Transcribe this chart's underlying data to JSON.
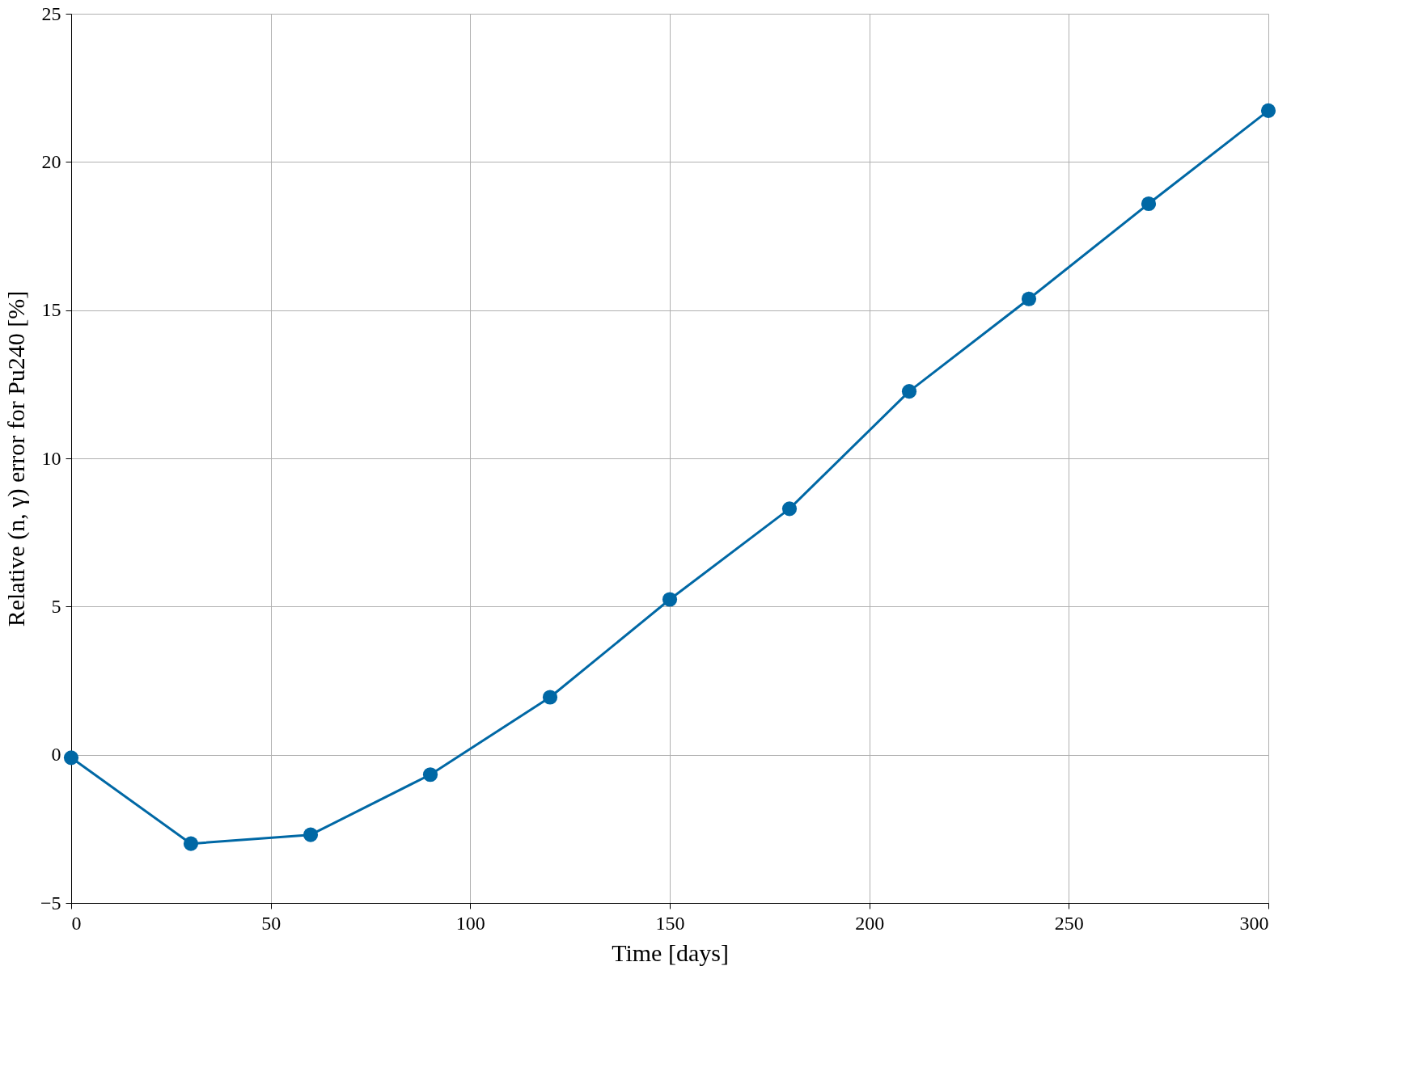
{
  "chart_data": {
    "type": "line",
    "xlabel": "Time [days]",
    "ylabel": "Relative (n, γ) error for Pu240 [%]",
    "x": [
      0,
      30,
      60,
      90,
      120,
      150,
      180,
      210,
      240,
      270,
      300
    ],
    "series": [
      {
        "color": "#0068a5",
        "values": [
          -0.1,
          -3.0,
          -2.7,
          -0.67,
          1.94,
          5.24,
          8.3,
          12.26,
          15.38,
          18.59,
          21.73
        ]
      }
    ],
    "xlim": [
      0,
      300
    ],
    "xticks": [
      0,
      50,
      100,
      150,
      200,
      250,
      300
    ],
    "ylim": [
      -5,
      25
    ],
    "yticks": [
      -5,
      0,
      5,
      10,
      15,
      20,
      25
    ],
    "grid": true,
    "marker": "circle",
    "line_style": "solid"
  }
}
